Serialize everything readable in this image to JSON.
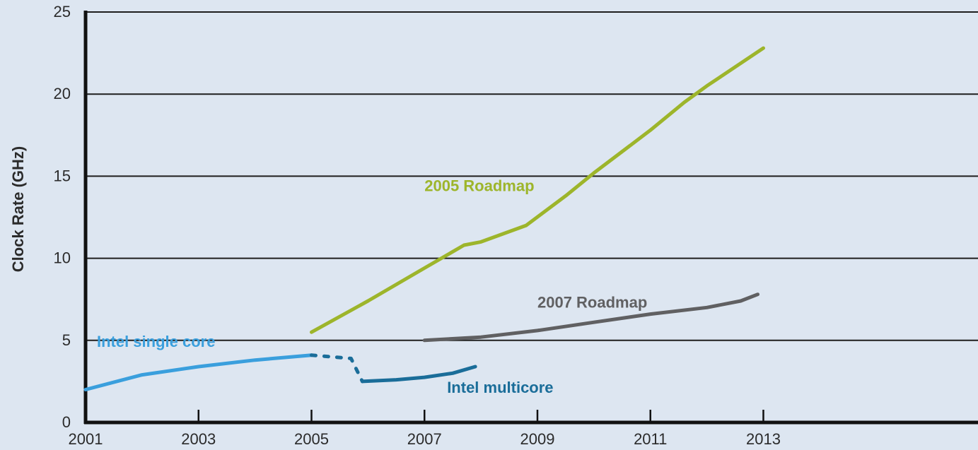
{
  "chart_data": {
    "type": "line",
    "title": "",
    "xlabel": "",
    "ylabel": "Clock Rate (GHz)",
    "xlim": [
      2001,
      2016.8
    ],
    "ylim": [
      0,
      25
    ],
    "xticks": [
      2001,
      2003,
      2005,
      2007,
      2009,
      2011,
      2013
    ],
    "yticks": [
      0,
      5,
      10,
      15,
      20,
      25
    ],
    "grid": true,
    "series": [
      {
        "name": "Intel single core",
        "color": "#3a9fdd",
        "style": "solid",
        "points": [
          [
            2001,
            2.0
          ],
          [
            2002,
            2.9
          ],
          [
            2003,
            3.4
          ],
          [
            2004,
            3.8
          ],
          [
            2005,
            4.1
          ]
        ]
      },
      {
        "name": "",
        "color": "#1a6d99",
        "style": "dotted",
        "points": [
          [
            2005,
            4.1
          ],
          [
            2005.7,
            3.9
          ],
          [
            2005.9,
            2.5
          ]
        ]
      },
      {
        "name": "Intel multicore",
        "color": "#1a6d99",
        "style": "solid",
        "points": [
          [
            2005.9,
            2.5
          ],
          [
            2006.5,
            2.6
          ],
          [
            2007,
            2.75
          ],
          [
            2007.5,
            3.0
          ],
          [
            2007.9,
            3.4
          ]
        ]
      },
      {
        "name": "2005 Roadmap",
        "color": "#9db52b",
        "style": "solid",
        "points": [
          [
            2005,
            5.5
          ],
          [
            2006,
            7.4
          ],
          [
            2007,
            9.4
          ],
          [
            2007.7,
            10.8
          ],
          [
            2008,
            11.0
          ],
          [
            2008.8,
            12.0
          ],
          [
            2009.5,
            13.8
          ],
          [
            2010,
            15.2
          ],
          [
            2011,
            17.8
          ],
          [
            2011.6,
            19.5
          ],
          [
            2012,
            20.5
          ],
          [
            2013,
            22.8
          ]
        ]
      },
      {
        "name": "2007 Roadmap",
        "color": "#606062",
        "style": "solid",
        "points": [
          [
            2007,
            5.0
          ],
          [
            2008,
            5.2
          ],
          [
            2009,
            5.6
          ],
          [
            2010,
            6.1
          ],
          [
            2011,
            6.6
          ],
          [
            2012,
            7.0
          ],
          [
            2012.6,
            7.4
          ],
          [
            2012.9,
            7.8
          ]
        ]
      }
    ],
    "annotations": [
      {
        "text": "Intel single core",
        "color": "#3a9fdd",
        "x": 2001.2,
        "y": 4.6
      },
      {
        "text": "Intel multicore",
        "color": "#1a6d99",
        "x": 2007.4,
        "y": 1.8
      },
      {
        "text": "2005 Roadmap",
        "color": "#9db52b",
        "x": 2007.0,
        "y": 14.1
      },
      {
        "text": "2007 Roadmap",
        "color": "#606062",
        "x": 2009.0,
        "y": 7.0
      }
    ]
  }
}
